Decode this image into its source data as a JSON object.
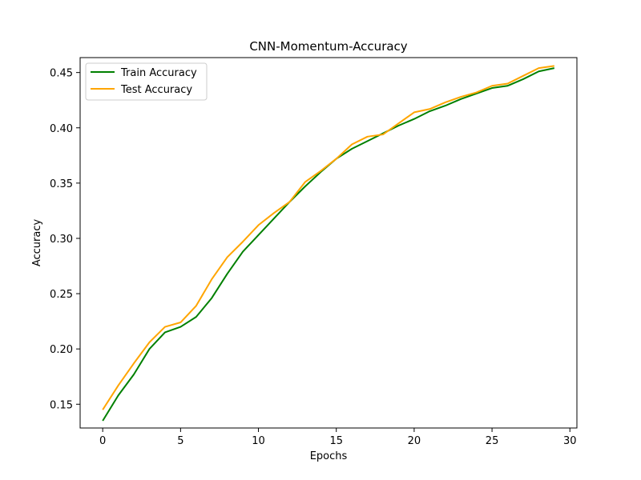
{
  "chart_data": {
    "type": "line",
    "title": "CNN-Momentum-Accuracy",
    "xlabel": "Epochs",
    "ylabel": "Accuracy",
    "xlim": [
      -1.45,
      30.45
    ],
    "ylim": [
      0.1285,
      0.4635
    ],
    "xticks": [
      0,
      5,
      10,
      15,
      20,
      25,
      30
    ],
    "yticks": [
      0.15,
      0.2,
      0.25,
      0.3,
      0.35,
      0.4,
      0.45
    ],
    "ytick_labels": [
      "0.15",
      "0.20",
      "0.25",
      "0.30",
      "0.35",
      "0.40",
      "0.45"
    ],
    "grid": false,
    "legend_position": "upper-left",
    "x": [
      0,
      1,
      2,
      3,
      4,
      5,
      6,
      7,
      8,
      9,
      10,
      11,
      12,
      13,
      14,
      15,
      16,
      17,
      18,
      19,
      20,
      21,
      22,
      23,
      24,
      25,
      26,
      27,
      28,
      29
    ],
    "series": [
      {
        "name": "Train Accuracy",
        "color": "#008000",
        "values": [
          0.135,
          0.158,
          0.177,
          0.2,
          0.215,
          0.22,
          0.229,
          0.246,
          0.268,
          0.288,
          0.303,
          0.318,
          0.333,
          0.347,
          0.36,
          0.372,
          0.381,
          0.388,
          0.395,
          0.402,
          0.408,
          0.415,
          0.42,
          0.426,
          0.431,
          0.436,
          0.438,
          0.444,
          0.451,
          0.454
        ]
      },
      {
        "name": "Test Accuracy",
        "color": "#FFA500",
        "values": [
          0.145,
          0.167,
          0.187,
          0.206,
          0.22,
          0.224,
          0.239,
          0.263,
          0.283,
          0.297,
          0.312,
          0.323,
          0.333,
          0.351,
          0.361,
          0.372,
          0.385,
          0.392,
          0.394,
          0.404,
          0.414,
          0.417,
          0.423,
          0.428,
          0.432,
          0.438,
          0.44,
          0.447,
          0.454,
          0.456
        ]
      }
    ]
  }
}
